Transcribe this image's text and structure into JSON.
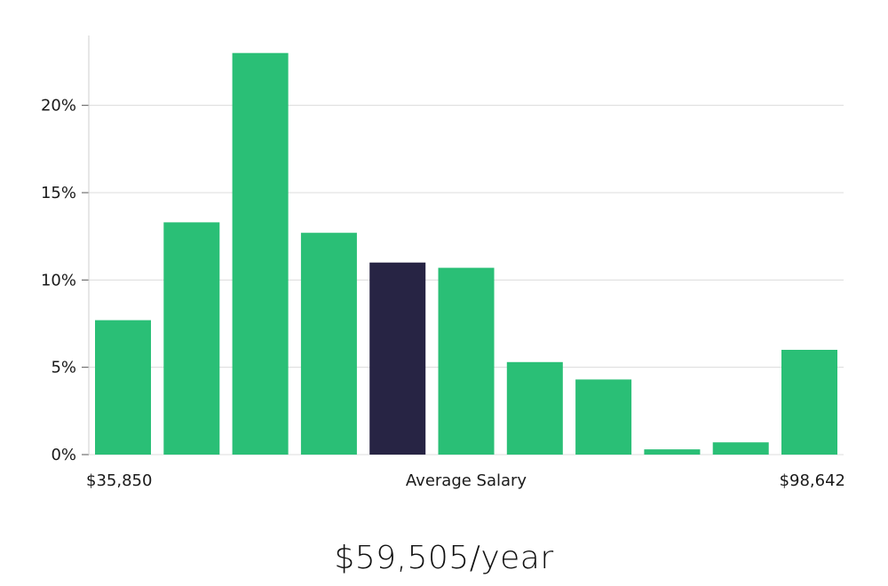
{
  "chart_data": {
    "type": "bar",
    "values": [
      7.7,
      13.3,
      23.0,
      12.7,
      11.0,
      10.7,
      5.3,
      4.3,
      0.3,
      0.7,
      6.0
    ],
    "highlight_index": 4,
    "y_ticks": [
      0,
      5,
      10,
      15,
      20
    ],
    "y_tick_labels": [
      "0%",
      "5%",
      "10%",
      "15%",
      "20%"
    ],
    "ylim": [
      0,
      24
    ],
    "x_min_label": "$35,850",
    "x_center_label": "Average Salary",
    "x_max_label": "$98,642",
    "grid": true,
    "colors": {
      "bar": "#2abf76",
      "highlight": "#272444",
      "grid": "#dcdcdc",
      "axis": "#cfcfcf"
    }
  },
  "salary_label": "$59,505/year"
}
